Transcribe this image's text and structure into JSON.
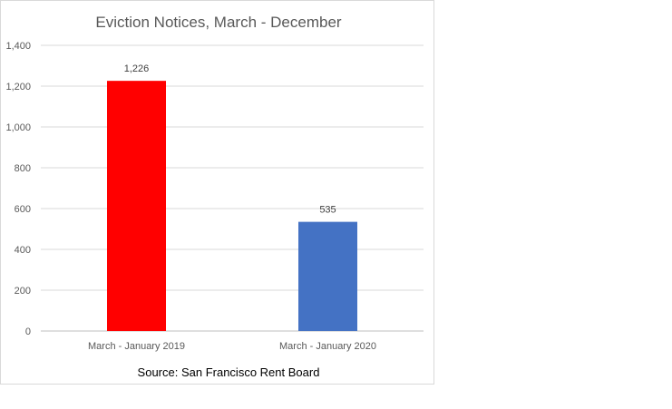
{
  "chart_data": {
    "type": "bar",
    "title": "Eviction Notices, March - December",
    "xlabel": "",
    "ylabel": "",
    "categories": [
      "March - January 2019",
      "March - January 2020"
    ],
    "values": [
      1226,
      535
    ],
    "data_labels": [
      "1,226",
      "535"
    ],
    "colors": [
      "#ff0000",
      "#4472c4"
    ],
    "ylim": [
      0,
      1400
    ],
    "yticks": [
      0,
      200,
      400,
      600,
      800,
      1000,
      1200,
      1400
    ],
    "ytick_labels": [
      "0",
      "200",
      "400",
      "600",
      "800",
      "1,000",
      "1,200",
      "1,400"
    ],
    "grid": true,
    "legend": "none",
    "source_note": "Source: San Francisco Rent Board"
  }
}
